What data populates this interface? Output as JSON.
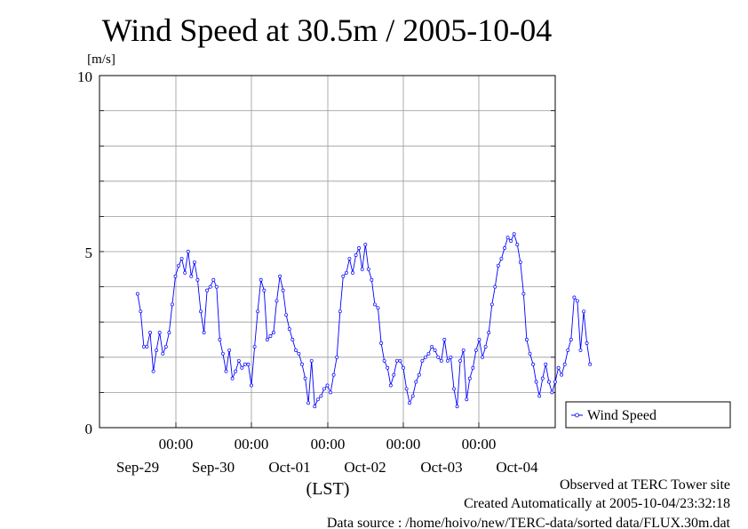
{
  "chart_data": {
    "type": "line",
    "title": "Wind Speed at 30.5m / 2005-10-04",
    "ylabel": "[m/s]",
    "xlabel": "(LST)",
    "ylim": [
      0,
      10
    ],
    "y_ticks": [
      "0",
      "5",
      "10"
    ],
    "x_time_ticks": [
      "00:00",
      "00:00",
      "00:00",
      "00:00",
      "00:00"
    ],
    "x_date_labels": [
      "Sep-29",
      "Sep-30",
      "Oct-01",
      "Oct-02",
      "Oct-03",
      "Oct-04"
    ],
    "grid": true,
    "legend_position": "right",
    "series": [
      {
        "name": "Wind Speed",
        "color": "#0000ff",
        "x_hours": [
          0,
          1,
          2,
          3,
          4,
          5,
          6,
          7,
          8,
          9,
          10,
          11,
          12,
          13,
          14,
          15,
          16,
          17,
          18,
          19,
          20,
          21,
          22,
          23,
          24,
          25,
          26,
          27,
          28,
          29,
          30,
          31,
          32,
          33,
          34,
          35,
          36,
          37,
          38,
          39,
          40,
          41,
          42,
          43,
          44,
          45,
          46,
          47,
          48,
          49,
          50,
          51,
          52,
          53,
          54,
          55,
          56,
          57,
          58,
          59,
          60,
          61,
          62,
          63,
          64,
          65,
          66,
          67,
          68,
          69,
          70,
          71,
          72,
          73,
          74,
          75,
          76,
          77,
          78,
          79,
          80,
          81,
          82,
          83,
          84,
          85,
          86,
          87,
          88,
          89,
          90,
          91,
          92,
          93,
          94,
          95,
          96,
          97,
          98,
          99,
          100,
          101,
          102,
          103,
          104,
          105,
          106,
          107,
          108,
          109,
          110,
          111,
          112,
          113,
          114,
          115,
          116,
          117,
          118,
          119,
          120,
          121,
          122,
          123,
          124,
          125,
          126,
          127,
          128,
          129,
          130,
          131,
          132,
          133,
          134,
          135,
          136,
          137,
          138,
          139,
          140,
          141,
          142,
          143
        ],
        "values": [
          3.8,
          3.3,
          2.3,
          2.3,
          2.7,
          1.6,
          2.2,
          2.7,
          2.1,
          2.3,
          2.7,
          3.5,
          4.3,
          4.6,
          4.8,
          4.4,
          5.0,
          4.3,
          4.7,
          4.2,
          3.3,
          2.7,
          3.9,
          4.0,
          4.2,
          4.0,
          2.5,
          2.1,
          1.6,
          2.2,
          1.4,
          1.6,
          1.9,
          1.7,
          1.8,
          1.8,
          1.2,
          2.3,
          3.3,
          4.2,
          3.9,
          2.5,
          2.6,
          2.7,
          3.6,
          4.3,
          3.9,
          3.2,
          2.8,
          2.5,
          2.2,
          2.1,
          1.8,
          1.4,
          0.7,
          1.9,
          0.6,
          0.8,
          0.9,
          1.1,
          1.2,
          1.0,
          1.5,
          2.0,
          3.3,
          4.3,
          4.4,
          4.8,
          4.4,
          4.9,
          5.1,
          4.5,
          5.2,
          4.5,
          4.2,
          3.5,
          3.4,
          2.4,
          1.9,
          1.7,
          1.2,
          1.5,
          1.9,
          1.9,
          1.7,
          1.1,
          0.7,
          0.9,
          1.3,
          1.5,
          1.9,
          2.0,
          2.1,
          2.3,
          2.2,
          2.0,
          1.9,
          2.5,
          1.9,
          2.0,
          1.1,
          0.6,
          1.9,
          2.2,
          0.8,
          1.4,
          1.7,
          2.2,
          2.5,
          2.0,
          2.3,
          2.7,
          3.5,
          4.0,
          4.6,
          4.8,
          5.1,
          5.4,
          5.3,
          5.5,
          5.2,
          4.7,
          3.8,
          2.5,
          2.1,
          1.8,
          1.3,
          0.9,
          1.4,
          1.8,
          1.3,
          1.0,
          1.3,
          1.7,
          1.5,
          1.8,
          2.2,
          2.5,
          3.7,
          3.6,
          2.2,
          3.3,
          2.4,
          1.8
        ]
      }
    ]
  },
  "footer": {
    "line1": "Observed at TERC Tower site",
    "line2": "Created Automatically at 2005-10-04/23:32:18",
    "line3": "Data source : /home/hoivo/new/TERC-data/sorted  data/FLUX.30m.dat"
  }
}
